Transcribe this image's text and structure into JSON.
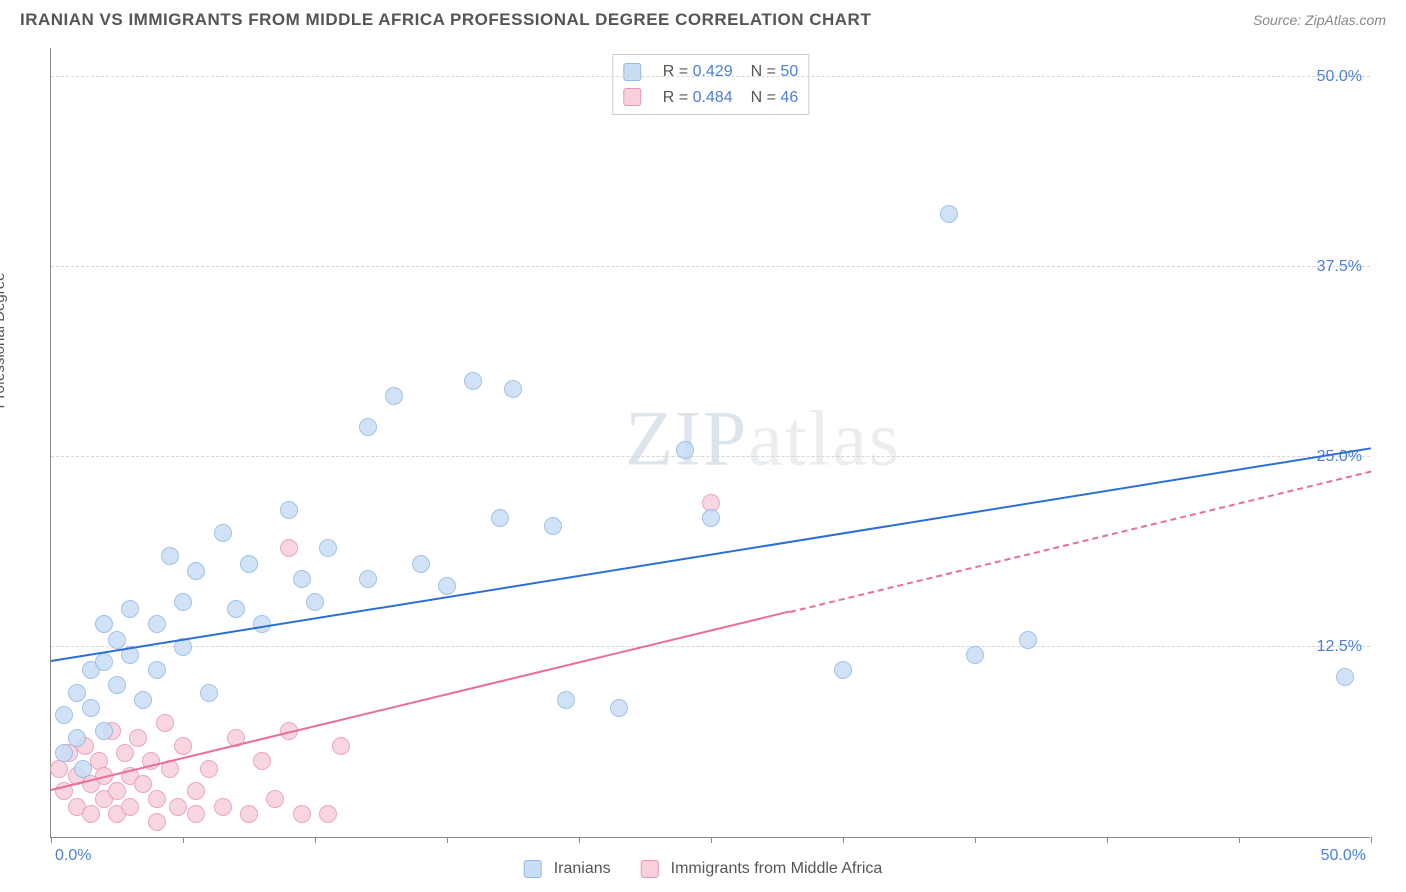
{
  "title": "IRANIAN VS IMMIGRANTS FROM MIDDLE AFRICA PROFESSIONAL DEGREE CORRELATION CHART",
  "source_label": "Source: ZipAtlas.com",
  "y_axis_label": "Professional Degree",
  "watermark": {
    "bold": "ZIP",
    "light": "atlas"
  },
  "axes": {
    "x_min": 0.0,
    "x_max": 50.0,
    "y_min": 0.0,
    "y_max": 52.0,
    "x_tick_labels": {
      "min": "0.0%",
      "max": "50.0%"
    },
    "x_tick_positions": [
      0,
      5,
      10,
      15,
      20,
      25,
      30,
      35,
      40,
      45,
      50
    ],
    "y_gridlines": [
      12.5,
      25.0,
      37.5,
      50.0
    ],
    "y_tick_labels": [
      "12.5%",
      "25.0%",
      "37.5%",
      "50.0%"
    ],
    "label_color": "#4a7fd8",
    "grid_color": "#d5d5d5"
  },
  "series": {
    "a": {
      "label": "Iranians",
      "fill": "#c9def5",
      "stroke": "#8fb8e8",
      "line_color": "#2b6fd6",
      "r_value": "0.429",
      "n_value": "50",
      "marker_radius": 9,
      "trend": {
        "x1": 0,
        "y1": 11.5,
        "x2": 50,
        "y2": 25.5,
        "dashed_from_x": null
      },
      "points": [
        [
          0.5,
          8.0
        ],
        [
          0.5,
          5.5
        ],
        [
          1.0,
          9.5
        ],
        [
          1.0,
          6.5
        ],
        [
          1.2,
          4.5
        ],
        [
          1.5,
          11.0
        ],
        [
          1.5,
          8.5
        ],
        [
          2.0,
          14.0
        ],
        [
          2.0,
          11.5
        ],
        [
          2.0,
          7.0
        ],
        [
          2.5,
          13.0
        ],
        [
          2.5,
          10.0
        ],
        [
          3.0,
          15.0
        ],
        [
          3.0,
          12.0
        ],
        [
          3.5,
          9.0
        ],
        [
          4.0,
          14.0
        ],
        [
          4.0,
          11.0
        ],
        [
          4.5,
          18.5
        ],
        [
          5.0,
          15.5
        ],
        [
          5.0,
          12.5
        ],
        [
          5.5,
          17.5
        ],
        [
          6.0,
          9.5
        ],
        [
          6.5,
          20.0
        ],
        [
          7.0,
          15.0
        ],
        [
          7.5,
          18.0
        ],
        [
          8.0,
          14.0
        ],
        [
          9.0,
          21.5
        ],
        [
          9.5,
          17.0
        ],
        [
          10.0,
          15.5
        ],
        [
          10.5,
          19.0
        ],
        [
          12.0,
          27.0
        ],
        [
          12.0,
          17.0
        ],
        [
          13.0,
          29.0
        ],
        [
          14.0,
          18.0
        ],
        [
          15.0,
          16.5
        ],
        [
          16.0,
          30.0
        ],
        [
          17.0,
          21.0
        ],
        [
          17.5,
          29.5
        ],
        [
          19.0,
          20.5
        ],
        [
          19.5,
          9.0
        ],
        [
          21.5,
          8.5
        ],
        [
          24.0,
          25.5
        ],
        [
          25.0,
          21.0
        ],
        [
          30.0,
          11.0
        ],
        [
          34.0,
          41.0
        ],
        [
          35.0,
          12.0
        ],
        [
          37.0,
          13.0
        ],
        [
          49.0,
          10.5
        ]
      ]
    },
    "b": {
      "label": "Immigrants from Middle Africa",
      "fill": "#f7d0db",
      "stroke": "#e997b0",
      "line_color": "#e86f95",
      "r_value": "0.484",
      "n_value": "46",
      "marker_radius": 9,
      "trend": {
        "x1": 0,
        "y1": 3.0,
        "x2": 50,
        "y2": 24.0,
        "dashed_from_x": 28
      },
      "points": [
        [
          0.3,
          4.5
        ],
        [
          0.5,
          3.0
        ],
        [
          0.7,
          5.5
        ],
        [
          1.0,
          4.0
        ],
        [
          1.0,
          2.0
        ],
        [
          1.3,
          6.0
        ],
        [
          1.5,
          3.5
        ],
        [
          1.5,
          1.5
        ],
        [
          1.8,
          5.0
        ],
        [
          2.0,
          4.0
        ],
        [
          2.0,
          2.5
        ],
        [
          2.3,
          7.0
        ],
        [
          2.5,
          3.0
        ],
        [
          2.5,
          1.5
        ],
        [
          2.8,
          5.5
        ],
        [
          3.0,
          4.0
        ],
        [
          3.0,
          2.0
        ],
        [
          3.3,
          6.5
        ],
        [
          3.5,
          3.5
        ],
        [
          3.8,
          5.0
        ],
        [
          4.0,
          2.5
        ],
        [
          4.0,
          1.0
        ],
        [
          4.3,
          7.5
        ],
        [
          4.5,
          4.5
        ],
        [
          4.8,
          2.0
        ],
        [
          5.0,
          6.0
        ],
        [
          5.5,
          3.0
        ],
        [
          5.5,
          1.5
        ],
        [
          6.0,
          4.5
        ],
        [
          6.5,
          2.0
        ],
        [
          7.0,
          6.5
        ],
        [
          7.5,
          1.5
        ],
        [
          8.0,
          5.0
        ],
        [
          8.5,
          2.5
        ],
        [
          9.0,
          7.0
        ],
        [
          9.0,
          19.0
        ],
        [
          9.5,
          1.5
        ],
        [
          10.5,
          1.5
        ],
        [
          11.0,
          6.0
        ],
        [
          25.0,
          22.0
        ]
      ]
    }
  },
  "stats_legend": {
    "r_label": "R = ",
    "n_label": "N = "
  },
  "background_color": "#ffffff"
}
